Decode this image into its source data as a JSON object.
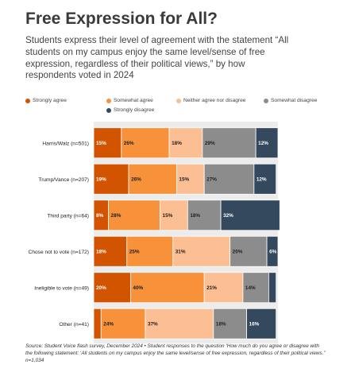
{
  "title": "Free Expression for All?",
  "subtitle": "Students express their level of agreement with the statement “All students on my campus enjoy the same level/sense of free expression, regardless of their political views,” by how respondents voted in 2024",
  "source": "Source: Student Voice flash survey, December 2024 • Student responses to the question ‘How much do you agree or disagree with the following statement: ‘All students on my campus enjoy the same level/sense of free expression, regardless of their political views.’’ n=1,034",
  "chart_data": {
    "type": "bar",
    "orientation": "horizontal",
    "stacked": true,
    "normalized_to_100": true,
    "legend_position": "top",
    "categories": [
      "Harris/Walz (n=501)",
      "Trump/Vance (n=207)",
      "Third party (n=64)",
      "Chose not to vote (n=172)",
      "Ineligible to vote (n=49)",
      "Other (n=41)"
    ],
    "series": [
      {
        "name": "Strongly agree",
        "color": "#d35400",
        "values": [
          15,
          19,
          8,
          18,
          20,
          4
        ]
      },
      {
        "name": "Somewhat agree",
        "color": "#f7913a",
        "values": [
          26,
          26,
          28,
          25,
          40,
          24
        ]
      },
      {
        "name": "Neither agree nor disagree",
        "color": "#fbbf93",
        "values": [
          18,
          15,
          15,
          31,
          21,
          37
        ]
      },
      {
        "name": "Somewhat disagree",
        "color": "#8c8c8c",
        "values": [
          29,
          27,
          18,
          20,
          14,
          18
        ]
      },
      {
        "name": "Strongly disagree",
        "color": "#34485e",
        "values": [
          12,
          12,
          32,
          6,
          4,
          16
        ]
      }
    ],
    "labels": [
      [
        "15%",
        "26%",
        "18%",
        "29%",
        "12%"
      ],
      [
        "19%",
        "26%",
        "15%",
        "27%",
        "12%"
      ],
      [
        "8%",
        "28%",
        "15%",
        "18%",
        "32%"
      ],
      [
        "18%",
        "25%",
        "31%",
        "20%",
        "6%"
      ],
      [
        "20%",
        "40%",
        "21%",
        "14%",
        ""
      ],
      [
        "",
        "24%",
        "37%",
        "18%",
        "16%"
      ]
    ],
    "label_colors": [
      "#ffffff",
      "#222222",
      "#222222",
      "#222222",
      "#ffffff"
    ]
  }
}
